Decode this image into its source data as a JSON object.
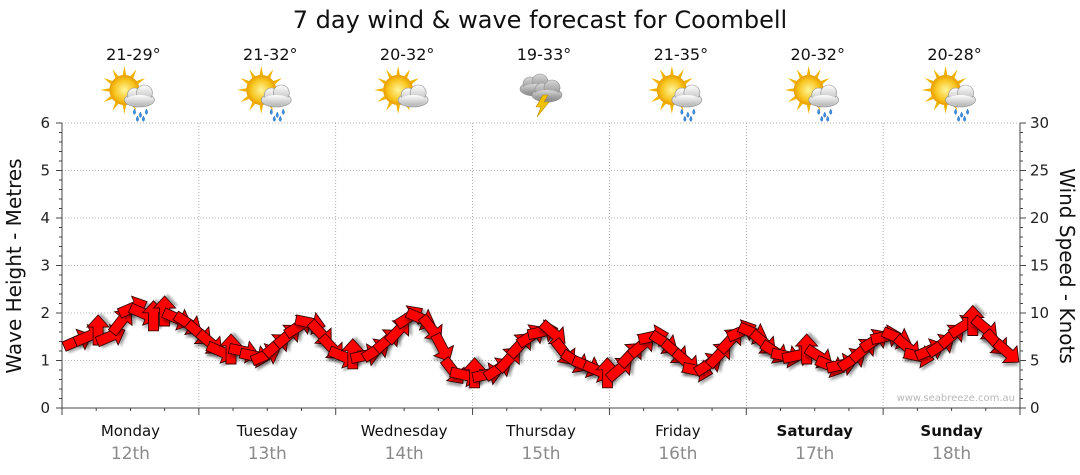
{
  "chart_data": {
    "type": "line",
    "title": "7 day wind & wave forecast for Coombell",
    "ylabel_left": "Wave Height - Metres",
    "ylabel_right": "Wind Speed - Knots",
    "ylim_left": [
      0,
      6
    ],
    "ylim_right": [
      0,
      30
    ],
    "yticks_left": [
      "0",
      "1",
      "2",
      "3",
      "4",
      "5",
      "6"
    ],
    "yticks_right": [
      "0",
      "5",
      "10",
      "15",
      "20",
      "25",
      "30"
    ],
    "days": [
      {
        "name": "Monday",
        "date": "12th",
        "temp": "21-29°",
        "icon": "sun-cloud-rain-icon",
        "bold": false
      },
      {
        "name": "Tuesday",
        "date": "13th",
        "temp": "21-32°",
        "icon": "sun-cloud-rain-icon",
        "bold": false
      },
      {
        "name": "Wednesday",
        "date": "14th",
        "temp": "20-32°",
        "icon": "sun-cloud-icon",
        "bold": false
      },
      {
        "name": "Thursday",
        "date": "15th",
        "temp": "19-33°",
        "icon": "thunderstorm-icon",
        "bold": false
      },
      {
        "name": "Friday",
        "date": "16th",
        "temp": "21-35°",
        "icon": "sun-cloud-rain-icon",
        "bold": false
      },
      {
        "name": "Saturday",
        "date": "17th",
        "temp": "20-32°",
        "icon": "sun-cloud-rain-icon",
        "bold": true
      },
      {
        "name": "Sunday",
        "date": "18th",
        "temp": "20-28°",
        "icon": "sun-cloud-rain-icon",
        "bold": true
      }
    ],
    "series": [
      {
        "name": "Wind Speed (knots)",
        "color": "#ff0000",
        "values": [
          7,
          7.5,
          8,
          7.5,
          9,
          10.5,
          10,
          9.5,
          10,
          9.5,
          9,
          8,
          7,
          6,
          6,
          6,
          5.5,
          5.5,
          6.5,
          7.5,
          8.5,
          9,
          8,
          6.5,
          5.5,
          5.5,
          5.5,
          6,
          7,
          8,
          9.5,
          9.5,
          8.5,
          6.5,
          4,
          3.5,
          3.5,
          3.5,
          4,
          5,
          6.5,
          7.5,
          8,
          8,
          6,
          5,
          4.5,
          4,
          3.5,
          4,
          5.5,
          6.5,
          7.5,
          7,
          6,
          5,
          4,
          4.5,
          5.5,
          7,
          8,
          8,
          7,
          6,
          5.5,
          5.5,
          6,
          5.5,
          4.5,
          4.5,
          5,
          6,
          7,
          7.5,
          7.5,
          6.5,
          5.5,
          6,
          6.5,
          7.5,
          8.5,
          9,
          8.5,
          7,
          6
        ]
      }
    ],
    "watermark": "www.seabreeze.com.au"
  }
}
